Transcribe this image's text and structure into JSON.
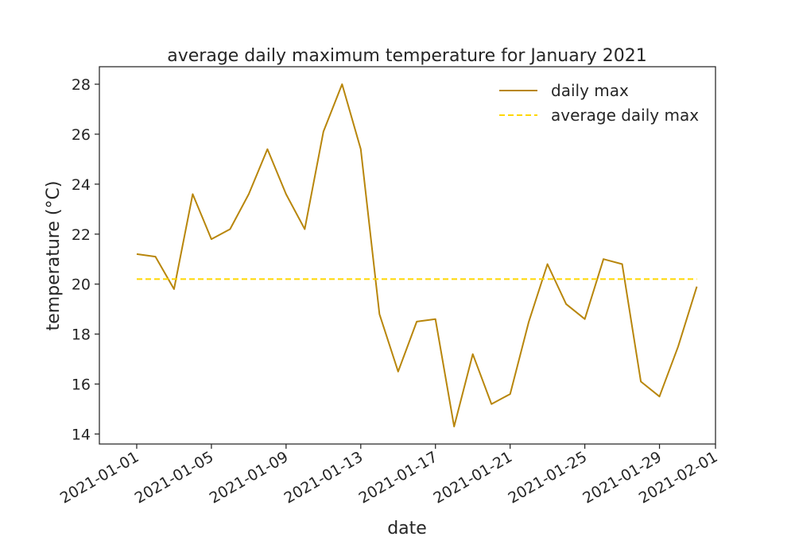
{
  "chart_data": {
    "type": "line",
    "title": "average daily maximum temperature for January 2021",
    "xlabel": "date",
    "ylabel": "temperature (°C)",
    "x": [
      "2021-01-01",
      "2021-01-02",
      "2021-01-03",
      "2021-01-04",
      "2021-01-05",
      "2021-01-06",
      "2021-01-07",
      "2021-01-08",
      "2021-01-09",
      "2021-01-10",
      "2021-01-11",
      "2021-01-12",
      "2021-01-13",
      "2021-01-14",
      "2021-01-15",
      "2021-01-16",
      "2021-01-17",
      "2021-01-18",
      "2021-01-19",
      "2021-01-20",
      "2021-01-21",
      "2021-01-22",
      "2021-01-23",
      "2021-01-24",
      "2021-01-25",
      "2021-01-26",
      "2021-01-27",
      "2021-01-28",
      "2021-01-29",
      "2021-01-30",
      "2021-01-31"
    ],
    "series": [
      {
        "name": "daily max",
        "color": "#b8860b",
        "style": "solid",
        "values": [
          21.2,
          21.1,
          19.8,
          23.6,
          21.8,
          22.2,
          23.6,
          25.4,
          23.6,
          22.2,
          26.1,
          28.0,
          25.4,
          18.8,
          16.5,
          18.5,
          18.6,
          14.3,
          17.2,
          15.2,
          15.6,
          18.5,
          20.8,
          19.2,
          18.6,
          21.0,
          20.8,
          16.1,
          15.5,
          17.5,
          19.9
        ]
      },
      {
        "name": "average daily max",
        "color": "#ffd700",
        "style": "dashed",
        "values": [
          20.2,
          20.2,
          20.2,
          20.2,
          20.2,
          20.2,
          20.2,
          20.2,
          20.2,
          20.2,
          20.2,
          20.2,
          20.2,
          20.2,
          20.2,
          20.2,
          20.2,
          20.2,
          20.2,
          20.2,
          20.2,
          20.2,
          20.2,
          20.2,
          20.2,
          20.2,
          20.2,
          20.2,
          20.2,
          20.2,
          20.2
        ]
      }
    ],
    "x_ticks": [
      "2021-01-01",
      "2021-01-05",
      "2021-01-09",
      "2021-01-13",
      "2021-01-17",
      "2021-01-21",
      "2021-01-25",
      "2021-01-29",
      "2021-02-01"
    ],
    "y_ticks": [
      14,
      16,
      18,
      20,
      22,
      24,
      26,
      28
    ],
    "xlim": [
      "2020-12-30",
      "2021-02-01"
    ],
    "ylim": [
      13.6,
      28.7
    ],
    "grid": false,
    "legend_position": "top-right"
  }
}
